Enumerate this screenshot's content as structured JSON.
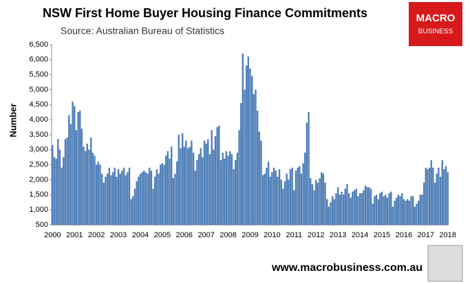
{
  "chart_data": {
    "type": "bar",
    "title": "NSW First Home Buyer Housing Finance Commitments",
    "subtitle": "Source: Australian Bureau of Statistics",
    "y_label": "Number",
    "color": "#4f81bd",
    "grid": false,
    "ylim": [
      500,
      6500
    ],
    "yticks": [
      500,
      {
        "value": 1000,
        "label": "1,000"
      },
      {
        "value": 1500,
        "label": "1,500"
      },
      {
        "value": 2000,
        "label": "2,000"
      },
      {
        "value": 2500,
        "label": "2,500"
      },
      {
        "value": 3000,
        "label": "3,000"
      },
      {
        "value": 3500,
        "label": "3,500"
      },
      {
        "value": 4000,
        "label": "4,000"
      },
      {
        "value": 4500,
        "label": "4,500"
      },
      {
        "value": 5000,
        "label": "5,000"
      },
      {
        "value": 5500,
        "label": "5,500"
      },
      {
        "value": 6000,
        "label": "6,000"
      },
      {
        "value": 6500,
        "label": "6,500"
      }
    ],
    "categories": [
      "2000",
      null,
      null,
      null,
      null,
      null,
      null,
      null,
      null,
      null,
      null,
      null,
      "2001",
      null,
      null,
      null,
      null,
      null,
      null,
      null,
      null,
      null,
      null,
      null,
      "2002",
      null,
      null,
      null,
      null,
      null,
      null,
      null,
      null,
      null,
      null,
      null,
      "2003",
      null,
      null,
      null,
      null,
      null,
      null,
      null,
      null,
      null,
      null,
      null,
      "2004",
      null,
      null,
      null,
      null,
      null,
      null,
      null,
      null,
      null,
      null,
      null,
      "2005",
      null,
      null,
      null,
      null,
      null,
      null,
      null,
      null,
      null,
      null,
      null,
      "2006",
      null,
      null,
      null,
      null,
      null,
      null,
      null,
      null,
      null,
      null,
      null,
      "2007",
      null,
      null,
      null,
      null,
      null,
      null,
      null,
      null,
      null,
      null,
      null,
      "2008",
      null,
      null,
      null,
      null,
      null,
      null,
      null,
      null,
      null,
      null,
      null,
      "2009",
      null,
      null,
      null,
      null,
      null,
      null,
      null,
      null,
      null,
      null,
      null,
      "2010",
      null,
      null,
      null,
      null,
      null,
      null,
      null,
      null,
      null,
      null,
      null,
      "2011",
      null,
      null,
      null,
      null,
      null,
      null,
      null,
      null,
      null,
      null,
      null,
      "2012",
      null,
      null,
      null,
      null,
      null,
      null,
      null,
      null,
      null,
      null,
      null,
      "2013",
      null,
      null,
      null,
      null,
      null,
      null,
      null,
      null,
      null,
      null,
      null,
      "2014",
      null,
      null,
      null,
      null,
      null,
      null,
      null,
      null,
      null,
      null,
      null,
      "2015",
      null,
      null,
      null,
      null,
      null,
      null,
      null,
      null,
      null,
      null,
      null,
      "2016",
      null,
      null,
      null,
      null,
      null,
      null,
      null,
      null,
      null,
      null,
      null,
      "2017",
      null,
      null,
      null,
      null,
      null,
      null,
      null,
      null,
      null,
      null,
      null,
      "2018"
    ],
    "values": [
      3150,
      2750,
      2700,
      3350,
      3000,
      2400,
      2750,
      3350,
      3400,
      4150,
      3850,
      4600,
      4450,
      3650,
      4250,
      4300,
      3700,
      3100,
      2950,
      3200,
      3000,
      3400,
      2900,
      2800,
      2500,
      2600,
      2500,
      2200,
      1900,
      2100,
      2200,
      2400,
      2150,
      2250,
      2400,
      2100,
      2350,
      2200,
      2300,
      2400,
      2150,
      2250,
      2400,
      1350,
      1450,
      1700,
      1950,
      2100,
      2200,
      2250,
      2300,
      2250,
      2200,
      2400,
      2300,
      1700,
      2100,
      2350,
      2200,
      2500,
      2550,
      2500,
      2800,
      2950,
      2700,
      3100,
      2050,
      2200,
      2600,
      3500,
      3050,
      3550,
      3100,
      3300,
      3050,
      3100,
      3300,
      2900,
      2300,
      2650,
      2850,
      3050,
      2750,
      3300,
      3200,
      3350,
      2850,
      3650,
      3000,
      3450,
      3750,
      3800,
      2650,
      2900,
      2700,
      2950,
      2800,
      2950,
      2850,
      2350,
      2650,
      2900,
      3650,
      4550,
      6200,
      5000,
      5800,
      6100,
      5700,
      5450,
      4850,
      5000,
      4300,
      3600,
      3300,
      2150,
      2200,
      2400,
      2600,
      2100,
      2250,
      2400,
      2300,
      2100,
      2350,
      2000,
      1700,
      1950,
      2200,
      2000,
      2350,
      2400,
      1650,
      2300,
      2400,
      2450,
      2200,
      2550,
      2900,
      3900,
      4250,
      2050,
      1850,
      1650,
      2000,
      1900,
      2050,
      2250,
      2200,
      1900,
      1350,
      1100,
      1250,
      1450,
      1350,
      1550,
      1750,
      1500,
      1600,
      1500,
      1700,
      1850,
      1550,
      1400,
      1600,
      1650,
      1700,
      1450,
      1550,
      1550,
      1650,
      1800,
      1750,
      1750,
      1700,
      1200,
      1450,
      1500,
      1350,
      1550,
      1600,
      1450,
      1500,
      1400,
      1550,
      1600,
      1100,
      1300,
      1400,
      1500,
      1450,
      1550,
      1350,
      1300,
      1350,
      1300,
      1450,
      1450,
      1100,
      1200,
      1300,
      1500,
      1500,
      1900,
      2400,
      2350,
      2400,
      2650,
      2400,
      1900,
      2200,
      2400,
      2100,
      2650,
      2350,
      2450,
      2250
    ]
  },
  "logo": {
    "line1": "MACRO",
    "line2": "BUSINESS"
  },
  "footer": "www.macrobusiness.com.au"
}
